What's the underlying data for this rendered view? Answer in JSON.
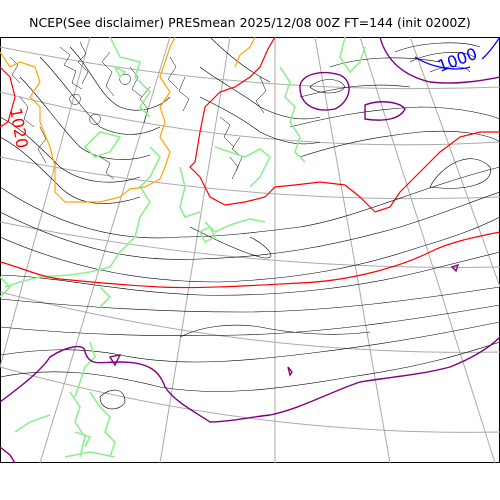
{
  "title": "NCEP(See disclaimer) PRESmean 2025/12/08 00Z FT=144 (init 0200Z)",
  "contour_labels": [
    {
      "text": "1020",
      "color": "#ff0000"
    },
    {
      "text": "1000",
      "color": "#0000ff"
    }
  ],
  "colors": {
    "isobar": "#000000",
    "contour_1020": "#ff0000",
    "contour_1000": "#0000ff",
    "contour_1010_marker": "#ffa500",
    "contour_purple": "#800080",
    "coastline": "#90ee90",
    "graticule": "#aaaaaa"
  }
}
